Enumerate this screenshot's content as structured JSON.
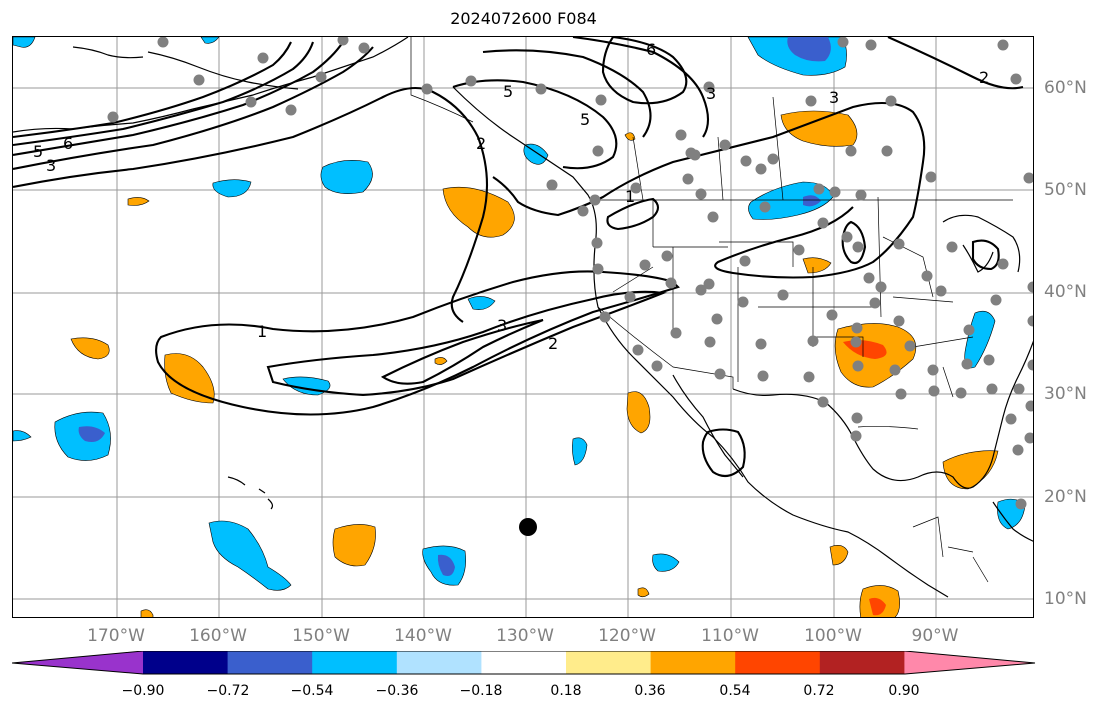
{
  "title": "2024072600 F084",
  "longitude_labels": [
    "170°W",
    "160°W",
    "150°W",
    "140°W",
    "130°W",
    "120°W",
    "110°W",
    "100°W",
    "90°W"
  ],
  "latitude_labels": [
    "60°N",
    "50°N",
    "40°N",
    "30°N",
    "20°N",
    "10°N"
  ],
  "contour_labels": [
    "1",
    "2",
    "3",
    "2",
    "3",
    "5",
    "6",
    "5",
    "3",
    "2",
    "3",
    "5",
    "6",
    "1"
  ],
  "colorbar": {
    "colors": [
      "#9933cc",
      "#00008b",
      "#3a5fcd",
      "#00bfff",
      "#b0e2ff",
      "#ffffff",
      "#ffec8b",
      "#ffa500",
      "#ff4500",
      "#b22222",
      "#ff88aa"
    ],
    "tick_labels": [
      "−0.90",
      "−0.72",
      "−0.54",
      "−0.36",
      "−0.18",
      "0.18",
      "0.36",
      "0.54",
      "0.72",
      "0.90"
    ]
  },
  "marker_colors": {
    "stations": "#808080",
    "center": "#000000"
  }
}
